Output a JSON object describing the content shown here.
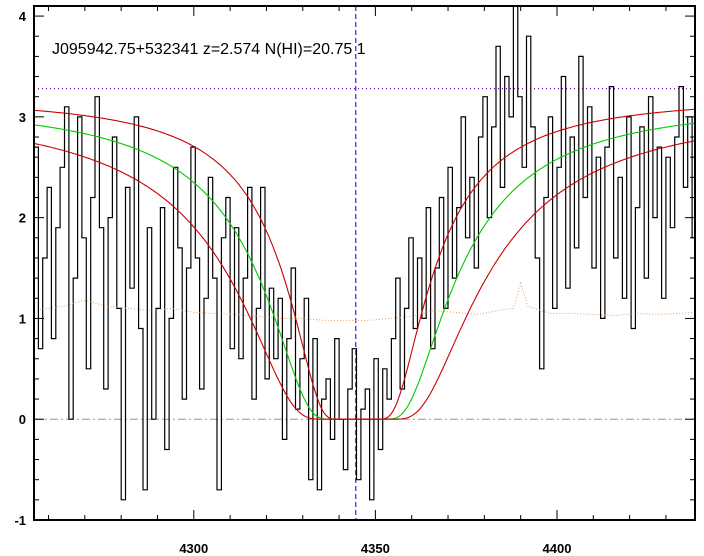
{
  "chart_data": {
    "type": "line",
    "title": "J095942.75+532341 z=2.574 N(HI)=20.75 1",
    "xlabel": "",
    "ylabel": "",
    "xlim": [
      4256,
      4438
    ],
    "ylim": [
      -1,
      4.1
    ],
    "x_ticks": [
      4300,
      4350,
      4400
    ],
    "y_ticks": [
      -1,
      0,
      1,
      2,
      3,
      4
    ],
    "grid": false,
    "absorber_center": 4344.6,
    "continuum_level": 3.28,
    "zero_level": 0,
    "colors": {
      "flux": "#000000",
      "fit": "#00cc00",
      "error_bounds": "#cc0000",
      "error": "#e8a060",
      "center": "#0000cc",
      "continuum": "#6a0dad",
      "zero": "#999999"
    },
    "series": [
      {
        "role": "flux",
        "style": "steps",
        "x": [
          4256.0,
          4257.2,
          4258.4,
          4259.6,
          4260.8,
          4262.0,
          4263.2,
          4264.4,
          4265.6,
          4266.8,
          4268.0,
          4269.2,
          4270.4,
          4271.6,
          4272.8,
          4274.0,
          4275.2,
          4276.4,
          4277.6,
          4278.8,
          4280.0,
          4281.2,
          4282.4,
          4283.6,
          4284.8,
          4286.0,
          4287.2,
          4288.4,
          4289.6,
          4290.8,
          4292.0,
          4293.2,
          4294.4,
          4295.6,
          4296.8,
          4298.0,
          4299.2,
          4300.4,
          4301.6,
          4302.8,
          4304.0,
          4305.2,
          4306.4,
          4307.6,
          4308.8,
          4310.0,
          4311.2,
          4312.4,
          4313.6,
          4314.8,
          4316.0,
          4317.2,
          4318.4,
          4319.6,
          4320.8,
          4322.0,
          4323.2,
          4324.4,
          4325.6,
          4326.8,
          4328.0,
          4329.2,
          4330.4,
          4331.6,
          4332.8,
          4334.0,
          4335.2,
          4336.4,
          4337.6,
          4338.8,
          4340.0,
          4341.2,
          4342.4,
          4343.6,
          4344.8,
          4346.0,
          4347.2,
          4348.4,
          4349.6,
          4350.8,
          4352.0,
          4353.2,
          4354.4,
          4355.6,
          4356.8,
          4358.0,
          4359.2,
          4360.4,
          4361.6,
          4362.8,
          4364.0,
          4365.2,
          4366.4,
          4367.6,
          4368.8,
          4370.0,
          4371.2,
          4372.4,
          4373.6,
          4374.8,
          4376.0,
          4377.2,
          4378.4,
          4379.6,
          4380.8,
          4382.0,
          4383.2,
          4384.4,
          4385.6,
          4386.8,
          4388.0,
          4389.2,
          4390.4,
          4391.6,
          4392.8,
          4394.0,
          4395.2,
          4396.4,
          4397.6,
          4398.8,
          4400.0,
          4401.2,
          4402.4,
          4403.6,
          4404.8,
          4406.0,
          4407.2,
          4408.4,
          4409.6,
          4410.8,
          4412.0,
          4413.2,
          4414.4,
          4415.6,
          4416.8,
          4418.0,
          4419.2,
          4420.4,
          4421.6,
          4422.8,
          4424.0,
          4425.2,
          4426.4,
          4427.6,
          4428.8,
          4430.0,
          4431.2,
          4432.4,
          4433.6,
          4434.8,
          4436.0,
          4437.2
        ],
        "y": [
          2.7,
          0.7,
          1.6,
          2.3,
          0.8,
          1.9,
          2.5,
          3.1,
          0.0,
          1.4,
          3.0,
          1.8,
          0.5,
          2.2,
          3.2,
          1.9,
          0.3,
          2.0,
          2.8,
          1.1,
          -0.8,
          2.3,
          1.3,
          3.0,
          0.9,
          -0.7,
          1.9,
          0.0,
          1.1,
          2.1,
          -0.3,
          1.0,
          2.5,
          1.7,
          0.2,
          1.5,
          2.7,
          1.6,
          0.3,
          1.2,
          2.4,
          1.4,
          -0.7,
          1.8,
          2.2,
          0.7,
          1.9,
          0.6,
          1.4,
          2.3,
          0.2,
          1.1,
          2.3,
          0.4,
          1.3,
          0.6,
          1.2,
          -0.2,
          0.8,
          1.5,
          0.1,
          0.6,
          1.2,
          -0.6,
          0.8,
          -0.7,
          0.2,
          0.4,
          -0.2,
          0.8,
          0.0,
          -0.5,
          0.3,
          0.7,
          -0.6,
          0.1,
          0.3,
          -0.8,
          0.6,
          -0.3,
          0.5,
          0.2,
          0.8,
          1.4,
          0.3,
          1.1,
          1.8,
          0.9,
          1.6,
          1.0,
          2.1,
          0.7,
          1.5,
          2.2,
          1.1,
          2.5,
          1.4,
          2.1,
          3.0,
          1.8,
          2.4,
          1.5,
          2.8,
          3.2,
          2.0,
          2.9,
          3.7,
          2.3,
          3.4,
          3.0,
          4.1,
          3.2,
          2.5,
          3.8,
          2.9,
          1.6,
          0.5,
          2.2,
          3.0,
          1.1,
          2.5,
          3.4,
          1.3,
          2.8,
          1.7,
          3.6,
          2.2,
          3.1,
          1.5,
          2.6,
          1.0,
          2.7,
          3.3,
          1.6,
          2.4,
          1.2,
          3.0,
          0.9,
          2.1,
          2.9,
          1.4,
          3.2,
          2.0,
          2.7,
          1.2,
          2.6,
          1.9,
          2.8,
          3.3,
          2.3,
          3.0,
          1.8
        ]
      },
      {
        "role": "error",
        "style": "dotted",
        "x": [
          4256,
          4264,
          4270,
          4276,
          4282,
          4288,
          4294,
          4300,
          4306,
          4312,
          4318,
          4324,
          4330,
          4336,
          4342,
          4348,
          4354,
          4360,
          4366,
          4372,
          4378,
          4384,
          4388,
          4390,
          4392,
          4398,
          4404,
          4410,
          4416,
          4422,
          4428,
          4434,
          4438
        ],
        "y": [
          1.08,
          1.12,
          1.18,
          1.12,
          1.1,
          1.08,
          1.1,
          1.06,
          1.05,
          1.04,
          1.02,
          1.0,
          1.0,
          0.98,
          0.98,
          0.98,
          1.0,
          1.02,
          1.08,
          1.06,
          1.04,
          1.08,
          1.1,
          1.35,
          1.12,
          1.05,
          1.05,
          1.04,
          1.03,
          1.05,
          1.04,
          1.05,
          1.06
        ]
      },
      {
        "role": "fit",
        "style": "line",
        "profile": {
          "center": 4345.2,
          "continuum": 3.15,
          "scale": 24.5
        }
      },
      {
        "role": "fit_lower_bound",
        "style": "line",
        "profile": {
          "center": 4345.2,
          "continuum": 3.1,
          "scale": 31.5
        }
      },
      {
        "role": "fit_upper_bound",
        "style": "line",
        "profile": {
          "center": 4345.2,
          "continuum": 3.2,
          "scale": 18.5
        }
      }
    ]
  }
}
